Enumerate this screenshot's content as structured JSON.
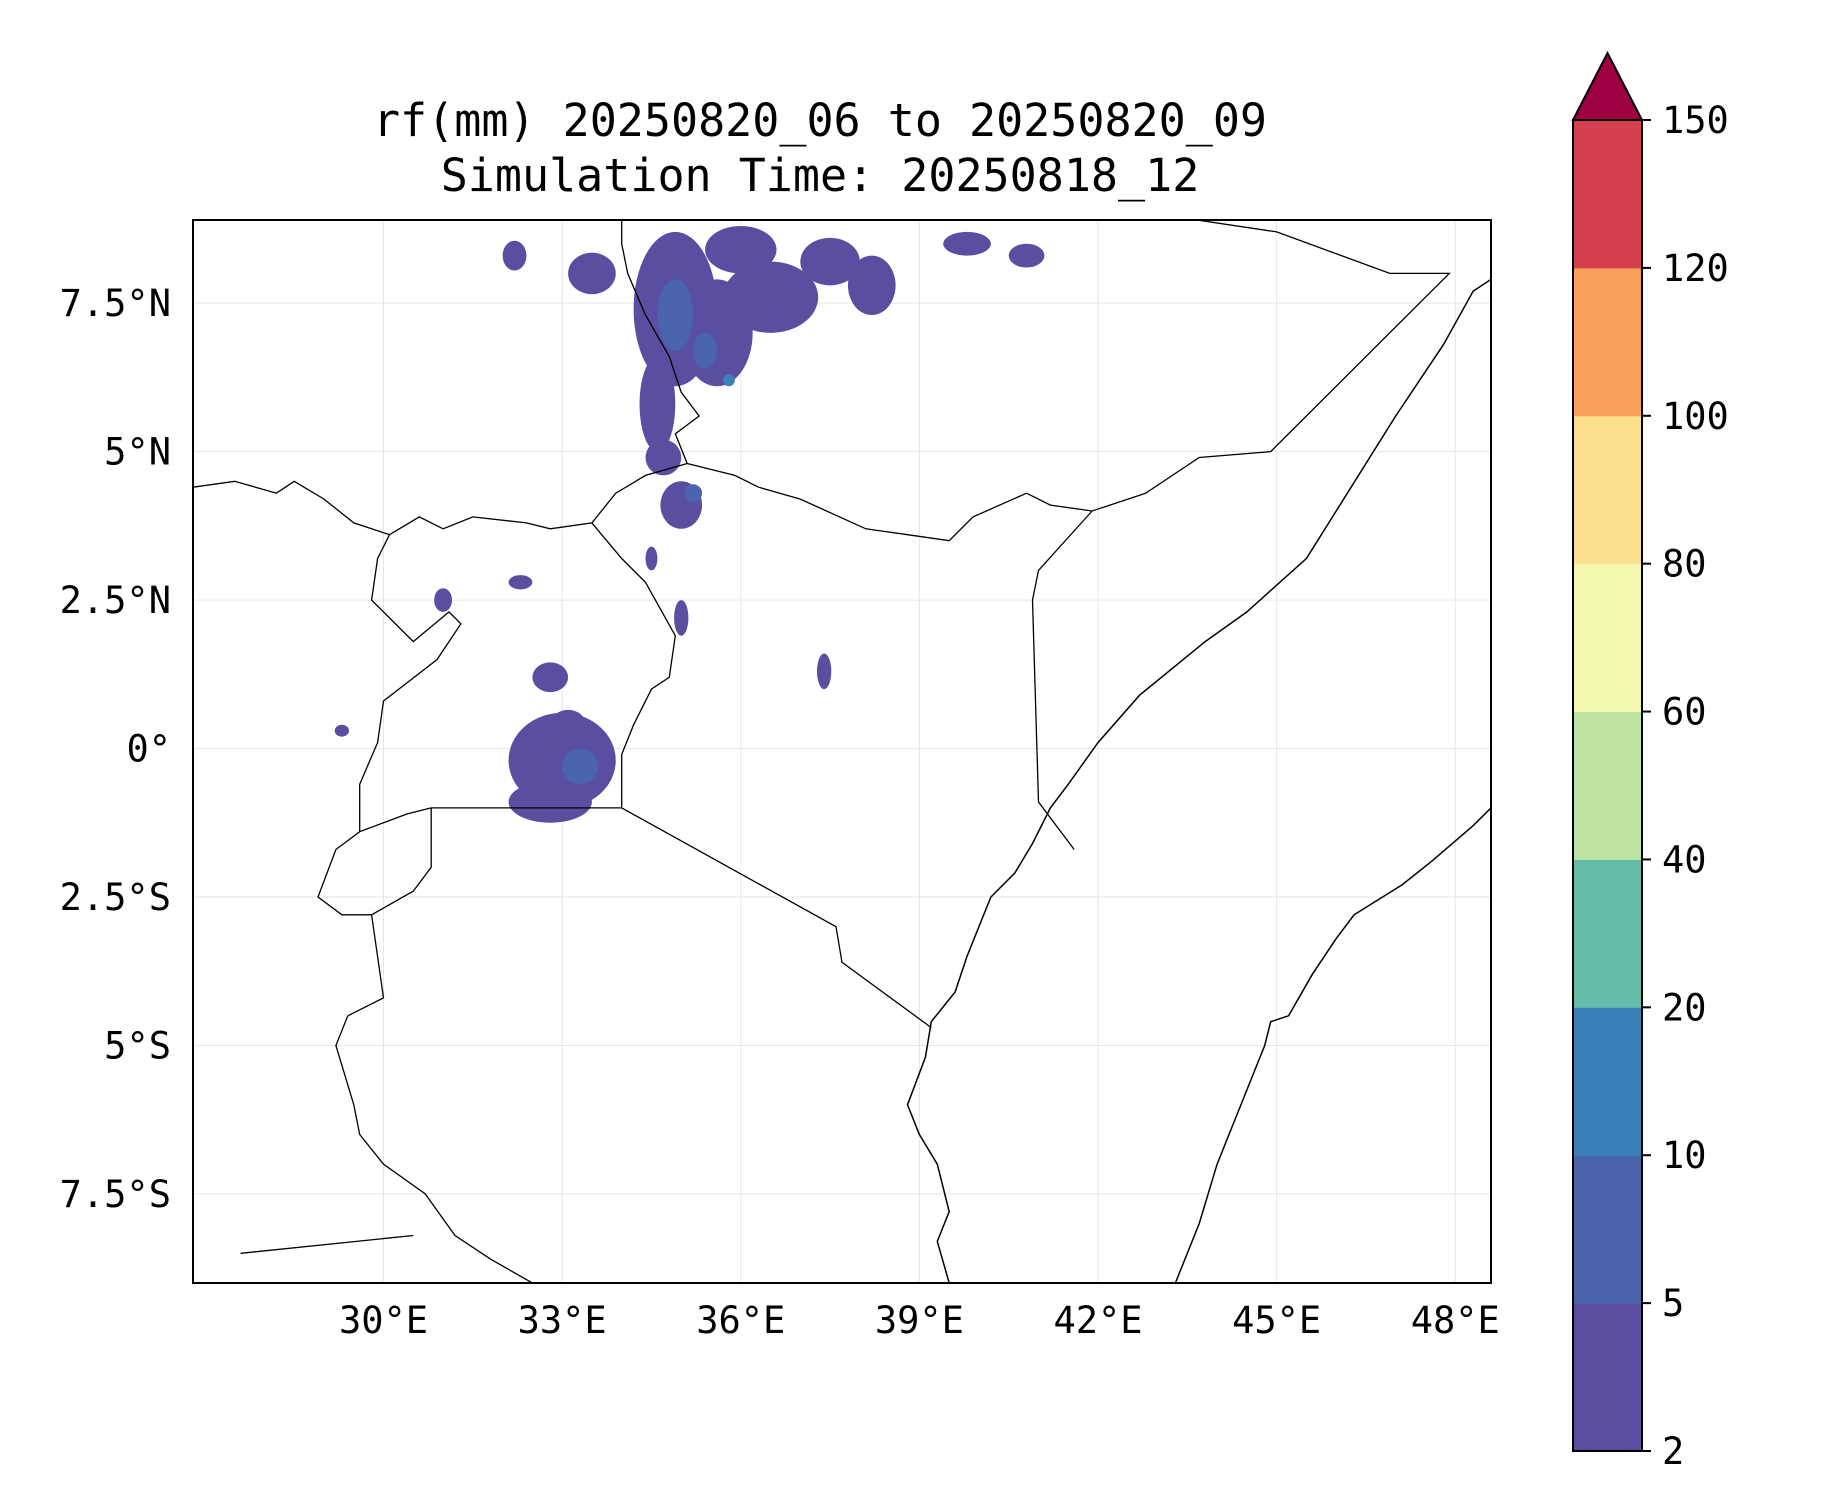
{
  "figure": {
    "title_line1": "rf(mm) 20250820_06 to 20250820_09",
    "title_line2": "Simulation Time: 20250818_12"
  },
  "map": {
    "projection": "PlateCarree",
    "extent": {
      "lon_min": 26.8,
      "lon_max": 48.6,
      "lat_min": -9.0,
      "lat_max": 8.9
    },
    "lon_ticks": [
      {
        "value": 30,
        "label": "30°E"
      },
      {
        "value": 33,
        "label": "33°E"
      },
      {
        "value": 36,
        "label": "36°E"
      },
      {
        "value": 39,
        "label": "39°E"
      },
      {
        "value": 42,
        "label": "42°E"
      },
      {
        "value": 45,
        "label": "45°E"
      },
      {
        "value": 48,
        "label": "48°E"
      }
    ],
    "lat_ticks": [
      {
        "value": 7.5,
        "label": "7.5°N"
      },
      {
        "value": 5,
        "label": "5°N"
      },
      {
        "value": 2.5,
        "label": "2.5°N"
      },
      {
        "value": 0,
        "label": "0°"
      },
      {
        "value": -2.5,
        "label": "2.5°S"
      },
      {
        "value": -5,
        "label": "5°S"
      },
      {
        "value": -7.5,
        "label": "7.5°S"
      }
    ],
    "gridlines": true,
    "colors": {
      "coast": "#000000",
      "grid": "#e6e6e6"
    },
    "coastline": [
      [
        43.3,
        -9.0
      ],
      [
        43.7,
        -8.0
      ],
      [
        44.0,
        -7.0
      ],
      [
        44.2,
        -6.5
      ],
      [
        44.8,
        -5.0
      ],
      [
        44.9,
        -4.6
      ],
      [
        45.2,
        -4.5
      ],
      [
        45.6,
        -3.8
      ],
      [
        46.0,
        -3.2
      ],
      [
        46.3,
        -2.8
      ],
      [
        47.1,
        -2.3
      ],
      [
        47.6,
        -1.9
      ],
      [
        48.3,
        -1.3
      ],
      [
        48.6,
        -1.0
      ]
    ],
    "coastline_north": [
      [
        48.6,
        7.9
      ],
      [
        48.3,
        7.7
      ],
      [
        47.8,
        6.8
      ],
      [
        47.0,
        5.6
      ],
      [
        46.0,
        4.0
      ],
      [
        45.5,
        3.2
      ],
      [
        44.5,
        2.3
      ],
      [
        43.8,
        1.8
      ],
      [
        42.7,
        0.9
      ],
      [
        42.0,
        0.1
      ],
      [
        41.5,
        -0.6
      ],
      [
        41.2,
        -1.0
      ],
      [
        40.9,
        -1.6
      ],
      [
        40.6,
        -2.1
      ],
      [
        40.2,
        -2.5
      ],
      [
        40.0,
        -3.0
      ],
      [
        39.8,
        -3.5
      ],
      [
        39.6,
        -4.1
      ],
      [
        39.2,
        -4.6
      ],
      [
        39.1,
        -5.2
      ],
      [
        38.8,
        -6.0
      ],
      [
        39.0,
        -6.5
      ],
      [
        39.3,
        -7.0
      ],
      [
        39.5,
        -7.8
      ],
      [
        39.3,
        -8.3
      ],
      [
        39.5,
        -9.0
      ]
    ],
    "borders": [
      [
        [
          26.8,
          4.4
        ],
        [
          27.5,
          4.5
        ],
        [
          28.2,
          4.3
        ],
        [
          28.5,
          4.5
        ],
        [
          29.0,
          4.2
        ],
        [
          29.5,
          3.8
        ],
        [
          30.1,
          3.6
        ],
        [
          30.6,
          3.9
        ],
        [
          31.0,
          3.7
        ],
        [
          31.5,
          3.9
        ],
        [
          32.4,
          3.8
        ],
        [
          32.8,
          3.7
        ],
        [
          33.5,
          3.8
        ],
        [
          33.9,
          4.3
        ],
        [
          34.4,
          4.6
        ],
        [
          35.1,
          4.8
        ]
      ],
      [
        [
          35.1,
          4.8
        ],
        [
          35.9,
          4.6
        ],
        [
          36.3,
          4.4
        ],
        [
          37.0,
          4.2
        ],
        [
          38.1,
          3.7
        ],
        [
          38.8,
          3.6
        ],
        [
          39.5,
          3.5
        ],
        [
          39.9,
          3.9
        ],
        [
          40.8,
          4.3
        ],
        [
          41.2,
          4.1
        ],
        [
          41.9,
          4.0
        ],
        [
          42.8,
          4.3
        ],
        [
          43.7,
          4.9
        ],
        [
          44.9,
          5.0
        ],
        [
          47.9,
          8.0
        ],
        [
          46.9,
          8.0
        ],
        [
          45.0,
          8.7
        ],
        [
          43.0,
          9.0
        ]
      ],
      [
        [
          41.9,
          4.0
        ],
        [
          41.0,
          3.0
        ],
        [
          40.9,
          2.5
        ],
        [
          41.0,
          -0.9
        ],
        [
          41.6,
          -1.7
        ]
      ],
      [
        [
          35.1,
          4.8
        ],
        [
          34.9,
          5.3
        ],
        [
          35.3,
          5.6
        ],
        [
          35.0,
          6.0
        ],
        [
          34.8,
          6.6
        ],
        [
          34.4,
          7.3
        ],
        [
          34.1,
          8.0
        ],
        [
          34.0,
          8.5
        ],
        [
          34.0,
          8.9
        ]
      ],
      [
        [
          33.5,
          3.8
        ],
        [
          34.0,
          3.2
        ],
        [
          34.4,
          2.8
        ],
        [
          34.9,
          1.9
        ],
        [
          34.8,
          1.2
        ],
        [
          34.5,
          1.0
        ],
        [
          34.2,
          0.4
        ],
        [
          34.0,
          -0.1
        ],
        [
          34.0,
          -1.0
        ]
      ],
      [
        [
          34.0,
          -1.0
        ],
        [
          37.6,
          -3.0
        ],
        [
          37.7,
          -3.6
        ],
        [
          39.2,
          -4.7
        ]
      ],
      [
        [
          30.8,
          -1.0
        ],
        [
          34.0,
          -1.0
        ]
      ],
      [
        [
          30.8,
          -1.0
        ],
        [
          30.4,
          -1.1
        ],
        [
          29.6,
          -1.4
        ],
        [
          29.2,
          -1.7
        ],
        [
          28.9,
          -2.5
        ],
        [
          29.3,
          -2.8
        ],
        [
          29.8,
          -2.8
        ],
        [
          30.5,
          -2.4
        ],
        [
          30.8,
          -2.0
        ],
        [
          30.8,
          -1.0
        ]
      ],
      [
        [
          29.8,
          -2.8
        ],
        [
          30.0,
          -4.2
        ],
        [
          29.4,
          -4.5
        ]
      ],
      [
        [
          30.1,
          3.6
        ],
        [
          29.9,
          3.2
        ],
        [
          29.8,
          2.5
        ],
        [
          30.5,
          1.8
        ],
        [
          31.1,
          2.3
        ],
        [
          31.3,
          2.1
        ],
        [
          30.9,
          1.5
        ],
        [
          30.0,
          0.8
        ],
        [
          29.9,
          0.1
        ],
        [
          29.6,
          -0.6
        ],
        [
          29.6,
          -1.4
        ]
      ],
      [
        [
          29.4,
          -4.5
        ],
        [
          29.2,
          -5.0
        ],
        [
          29.5,
          -6.0
        ],
        [
          29.6,
          -6.5
        ],
        [
          30.0,
          -7.0
        ],
        [
          30.7,
          -7.5
        ],
        [
          31.2,
          -8.2
        ],
        [
          31.8,
          -8.6
        ],
        [
          32.5,
          -9.0
        ]
      ],
      [
        [
          27.6,
          -8.5
        ],
        [
          30.5,
          -8.2
        ]
      ]
    ],
    "rain_patches": [
      {
        "lon": 34.9,
        "lat": 7.4,
        "rx": 0.7,
        "ry": 1.3,
        "bin": 0
      },
      {
        "lon": 35.6,
        "lat": 7.0,
        "rx": 0.6,
        "ry": 0.9,
        "bin": 0
      },
      {
        "lon": 36.5,
        "lat": 7.6,
        "rx": 0.8,
        "ry": 0.6,
        "bin": 0
      },
      {
        "lon": 37.5,
        "lat": 8.2,
        "rx": 0.5,
        "ry": 0.4,
        "bin": 0
      },
      {
        "lon": 38.2,
        "lat": 7.8,
        "rx": 0.4,
        "ry": 0.5,
        "bin": 0
      },
      {
        "lon": 36.0,
        "lat": 8.4,
        "rx": 0.6,
        "ry": 0.4,
        "bin": 0
      },
      {
        "lon": 34.6,
        "lat": 5.8,
        "rx": 0.3,
        "ry": 0.8,
        "bin": 0
      },
      {
        "lon": 34.7,
        "lat": 4.9,
        "rx": 0.3,
        "ry": 0.3,
        "bin": 0
      },
      {
        "lon": 35.0,
        "lat": 4.1,
        "rx": 0.35,
        "ry": 0.4,
        "bin": 0
      },
      {
        "lon": 33.5,
        "lat": 8.0,
        "rx": 0.4,
        "ry": 0.35,
        "bin": 0
      },
      {
        "lon": 32.2,
        "lat": 8.3,
        "rx": 0.2,
        "ry": 0.25,
        "bin": 0
      },
      {
        "lon": 39.8,
        "lat": 8.5,
        "rx": 0.4,
        "ry": 0.2,
        "bin": 0
      },
      {
        "lon": 40.8,
        "lat": 8.3,
        "rx": 0.3,
        "ry": 0.2,
        "bin": 0
      },
      {
        "lon": 32.3,
        "lat": 2.8,
        "rx": 0.2,
        "ry": 0.12,
        "bin": 0
      },
      {
        "lon": 31.0,
        "lat": 2.5,
        "rx": 0.15,
        "ry": 0.2,
        "bin": 0
      },
      {
        "lon": 32.8,
        "lat": 1.2,
        "rx": 0.3,
        "ry": 0.25,
        "bin": 0
      },
      {
        "lon": 35.0,
        "lat": 2.2,
        "rx": 0.12,
        "ry": 0.3,
        "bin": 0
      },
      {
        "lon": 37.4,
        "lat": 1.3,
        "rx": 0.12,
        "ry": 0.3,
        "bin": 0
      },
      {
        "lon": 33.0,
        "lat": -0.2,
        "rx": 0.9,
        "ry": 0.8,
        "bin": 0
      },
      {
        "lon": 32.8,
        "lat": -0.9,
        "rx": 0.7,
        "ry": 0.35,
        "bin": 0
      },
      {
        "lon": 33.1,
        "lat": 0.4,
        "rx": 0.3,
        "ry": 0.25,
        "bin": 0
      },
      {
        "lon": 29.3,
        "lat": 0.3,
        "rx": 0.12,
        "ry": 0.1,
        "bin": 0
      },
      {
        "lon": 34.5,
        "lat": 3.2,
        "rx": 0.1,
        "ry": 0.2,
        "bin": 0
      },
      {
        "lon": 34.9,
        "lat": 7.3,
        "rx": 0.3,
        "ry": 0.6,
        "bin": 1
      },
      {
        "lon": 35.4,
        "lat": 6.7,
        "rx": 0.2,
        "ry": 0.3,
        "bin": 1
      },
      {
        "lon": 33.3,
        "lat": -0.3,
        "rx": 0.3,
        "ry": 0.3,
        "bin": 1
      },
      {
        "lon": 35.2,
        "lat": 4.3,
        "rx": 0.15,
        "ry": 0.15,
        "bin": 1
      },
      {
        "lon": 35.8,
        "lat": 6.2,
        "rx": 0.1,
        "ry": 0.1,
        "bin": 2
      }
    ]
  },
  "colorbar": {
    "label_values": [
      "2",
      "5",
      "10",
      "20",
      "40",
      "60",
      "80",
      "100",
      "120",
      "150"
    ],
    "bin_colors": [
      "#5a4ea0",
      "#4a63ad",
      "#3a80bb",
      "#64bca9",
      "#bde4a2",
      "#f2f8b0",
      "#fbdf8c",
      "#f9a05c",
      "#d43f50"
    ],
    "extend_max_color": "#9e0142",
    "extend": "max"
  }
}
